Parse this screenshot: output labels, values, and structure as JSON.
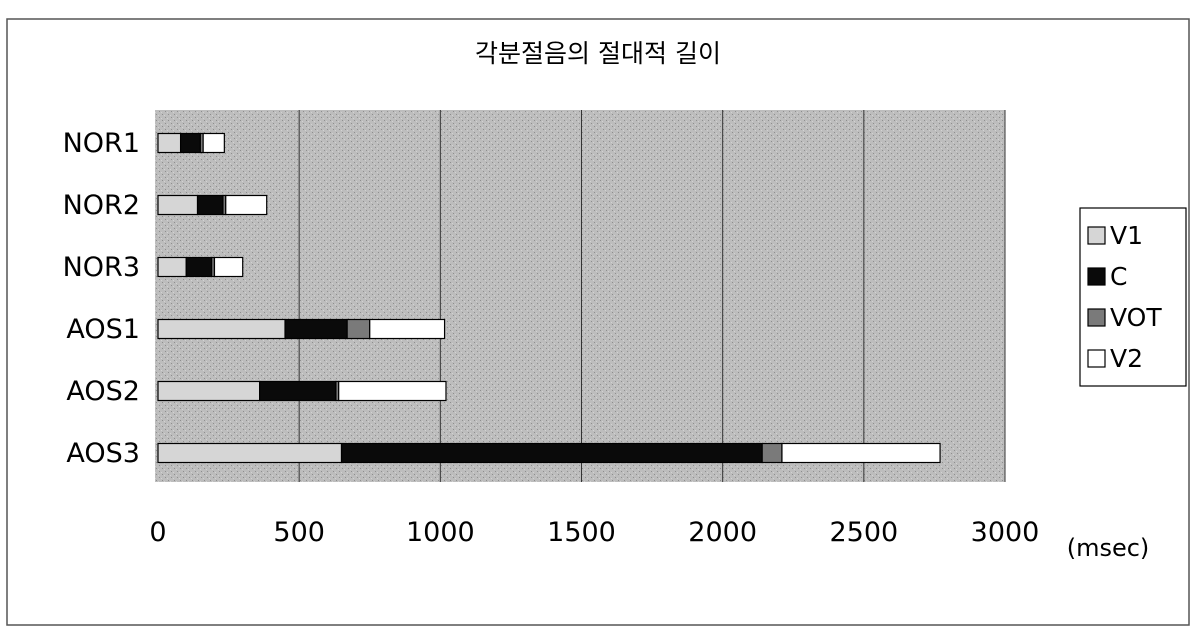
{
  "chart_data": {
    "type": "bar",
    "stacked": true,
    "orientation": "horizontal",
    "title": "각분절음의 절대적 길이",
    "xlabel": "(msec)",
    "ylabel": "",
    "xlim": [
      0,
      3000
    ],
    "x_ticks": [
      "0",
      "500",
      "1000",
      "1500",
      "2000",
      "2500",
      "3000"
    ],
    "grid": true,
    "legend_position": "right",
    "categories": [
      "NOR1",
      "NOR2",
      "NOR3",
      "AOS1",
      "AOS2",
      "AOS3"
    ],
    "series": [
      {
        "name": "V1",
        "color": "#d6d6d6",
        "values": [
          80,
          140,
          100,
          450,
          360,
          650
        ]
      },
      {
        "name": "C",
        "color": "#0a0a0a",
        "values": [
          70,
          90,
          90,
          220,
          270,
          1490
        ]
      },
      {
        "name": "VOT",
        "color": "#7a7a7a",
        "values": [
          10,
          10,
          10,
          80,
          10,
          70
        ]
      },
      {
        "name": "V2",
        "color": "#ffffff",
        "values": [
          75,
          145,
          100,
          265,
          380,
          560
        ]
      }
    ]
  }
}
